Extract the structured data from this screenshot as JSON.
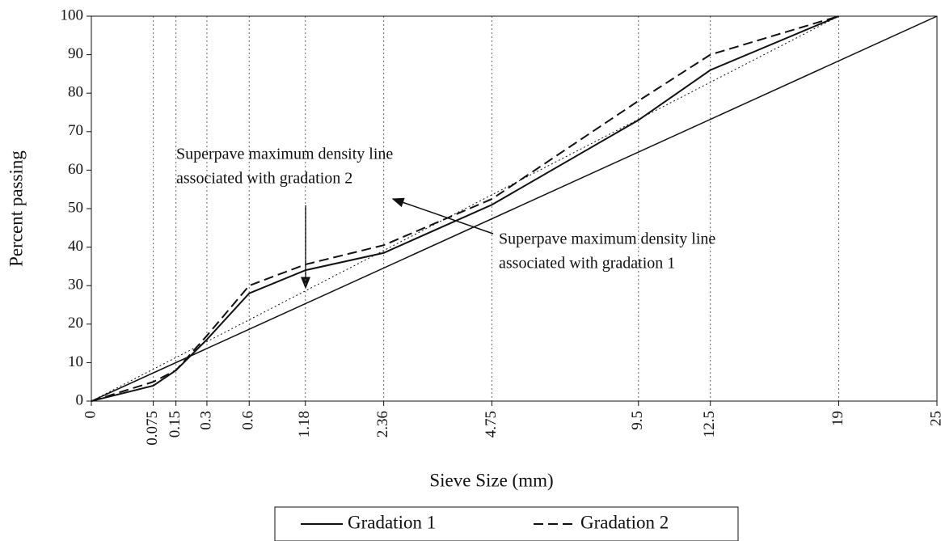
{
  "chart_data": {
    "type": "line",
    "x_label": "Sieve Size (mm)",
    "y_label": "Percent passing",
    "x": [
      0,
      0.075,
      0.15,
      0.3,
      0.6,
      1.18,
      2.36,
      4.75,
      9.5,
      12.5,
      19,
      25
    ],
    "xscale": {
      "type": "power",
      "exponent": 0.45
    },
    "xlim": [
      0,
      25
    ],
    "xticks": [
      0,
      0.075,
      0.15,
      0.3,
      0.6,
      1.18,
      2.36,
      4.75,
      9.5,
      12.5,
      19,
      25
    ],
    "ylim": [
      0,
      100
    ],
    "yticks": [
      0,
      10,
      20,
      30,
      40,
      50,
      60,
      70,
      80,
      90,
      100
    ],
    "grid": true,
    "series": [
      {
        "name": "Gradation 1",
        "color": "#111111",
        "dash": "solid",
        "values": [
          0,
          4,
          8,
          16,
          28,
          34,
          38.5,
          51,
          73,
          86,
          100,
          null
        ]
      },
      {
        "name": "Gradation 2",
        "color": "#111111",
        "dash": "dashed",
        "values": [
          0,
          5,
          8,
          17,
          30,
          35.5,
          40.5,
          52.5,
          78,
          90,
          100,
          null
        ]
      }
    ],
    "density_lines": [
      {
        "x": [
          0,
          25
        ],
        "values": [
          0,
          100
        ],
        "dash": "solid"
      },
      {
        "x": [
          0,
          19
        ],
        "values": [
          0,
          100
        ],
        "dash": "dotted"
      }
    ],
    "annotations": [
      {
        "lines": [
          "Superpave maximum density line",
          "associated with gradation 2"
        ]
      },
      {
        "lines": [
          "Superpave maximum density line",
          "associated with gradation 1"
        ]
      }
    ]
  }
}
